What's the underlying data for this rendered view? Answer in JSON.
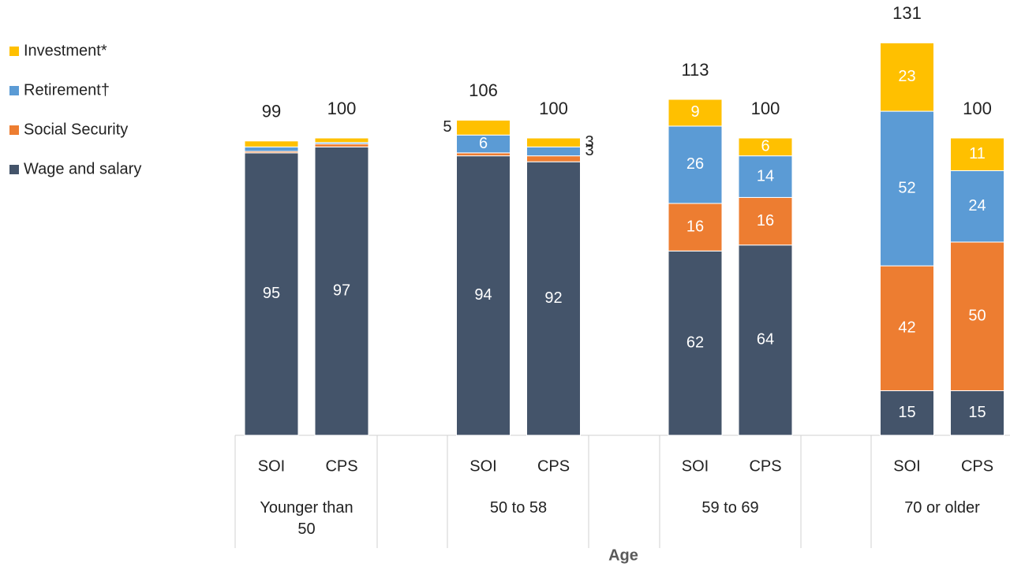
{
  "chart_data": {
    "type": "bar",
    "stacked": true,
    "x_label": "Age",
    "groups": [
      "Younger than 50",
      "50 to 58",
      "59 to 69",
      "70 or older"
    ],
    "categories": [
      "SOI",
      "CPS",
      "SOI",
      "CPS",
      "SOI",
      "CPS",
      "SOI",
      "CPS"
    ],
    "series": [
      {
        "name": "Wage and salary",
        "color": "#44546a",
        "values": [
          95,
          97,
          94,
          92,
          62,
          64,
          15,
          15
        ]
      },
      {
        "name": "Social Security",
        "color": "#ed7d31",
        "values": [
          0.5,
          1,
          1,
          2,
          16,
          16,
          42,
          50
        ]
      },
      {
        "name": "Retirement†",
        "color": "#5b9bd5",
        "values": [
          1.5,
          0.5,
          6,
          3,
          26,
          14,
          52,
          24
        ]
      },
      {
        "name": "Investment*",
        "color": "#ffc000",
        "values": [
          2,
          1.5,
          5,
          3,
          9,
          6,
          23,
          11
        ]
      }
    ],
    "totals": [
      99,
      100,
      106,
      100,
      113,
      100,
      131,
      100
    ]
  }
}
